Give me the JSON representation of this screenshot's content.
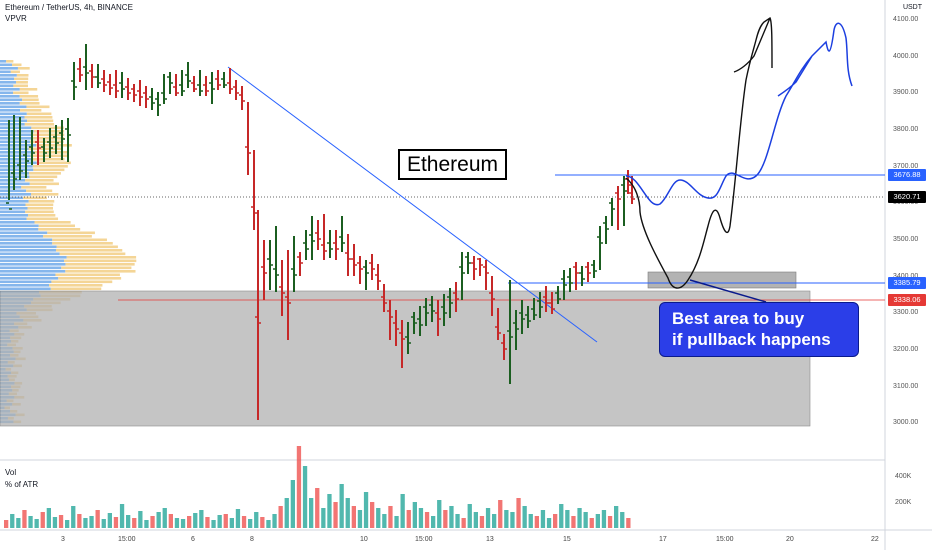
{
  "header": {
    "symbol_line": "Ethereum / TetherUS, 4h, BINANCE",
    "indicator": "VPVR"
  },
  "price_axis": {
    "currency": "USDT",
    "ticks": [
      "4100.00",
      "4000.00",
      "3900.00",
      "3800.00",
      "3700.00",
      "3600.00",
      "3500.00",
      "3400.00",
      "3300.00",
      "3200.00",
      "3100.00",
      "3000.00"
    ]
  },
  "price_labels": [
    {
      "text": "3676.88",
      "color": "#2962ff"
    },
    {
      "text": "3620.71",
      "color": "#000000"
    },
    {
      "text": "3385.79",
      "color": "#2962ff"
    },
    {
      "text": "3338.06",
      "color": "#e53935"
    }
  ],
  "annotations": {
    "title_box": "Ethereum",
    "buy_line1": "Best area to buy",
    "buy_line2": "if pullback happens"
  },
  "volume_pane": {
    "label": "Vol",
    "sublabel": "% of ATR",
    "axis_ticks": [
      "400K",
      "200K"
    ]
  },
  "x_axis": {
    "ticks": [
      "3",
      "15:00",
      "6",
      "8",
      "10",
      "15:00",
      "13",
      "15",
      "17",
      "15:00",
      "20",
      "22"
    ]
  },
  "colors": {
    "up": "#1b5e20",
    "down": "#c62828",
    "vol_up": "#26a69a",
    "vol_down": "#ef5350",
    "trend": "#2962ff",
    "zone": "#b2b2b2"
  }
}
